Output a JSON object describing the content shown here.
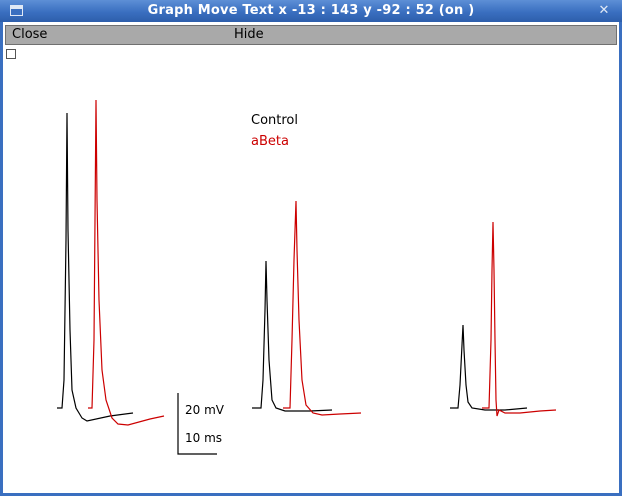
{
  "window": {
    "title": "Graph Move Text x -13 : 143  y -92 : 52 (on )",
    "icon": "window-menu-icon",
    "close_icon": "close-icon"
  },
  "menu": {
    "close_label": "Close",
    "hide_label": "Hide"
  },
  "legend": {
    "items": [
      {
        "label": "Control",
        "color": "#000000"
      },
      {
        "label": "aBeta",
        "color": "#cc0000"
      }
    ]
  },
  "scalebar": {
    "voltage_label": "20 mV",
    "time_label": "10 ms"
  },
  "colors": {
    "control": "#000000",
    "abeta": "#cc0000",
    "accent": "#3a6fc0"
  }
}
